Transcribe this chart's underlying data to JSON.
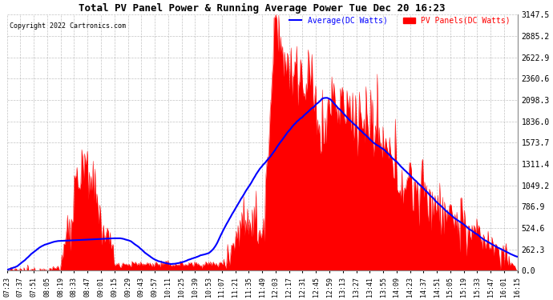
{
  "title": "Total PV Panel Power & Running Average Power Tue Dec 20 16:23",
  "copyright": "Copyright 2022 Cartronics.com",
  "legend_avg": "Average(DC Watts)",
  "legend_pv": "PV Panels(DC Watts)",
  "ylabel_right_values": [
    3147.5,
    2885.2,
    2622.9,
    2360.6,
    2098.3,
    1836.0,
    1573.7,
    1311.4,
    1049.2,
    786.9,
    524.6,
    262.3,
    0.0
  ],
  "ymax": 3147.5,
  "ymin": 0.0,
  "background_color": "#ffffff",
  "grid_color": "#aaaaaa",
  "pv_color": "#ff0000",
  "avg_color": "#0000ff",
  "title_color": "#000000",
  "copyright_color": "#000000",
  "x_tick_labels": [
    "07:23",
    "07:37",
    "07:51",
    "08:05",
    "08:19",
    "08:33",
    "08:47",
    "09:01",
    "09:15",
    "09:29",
    "09:43",
    "09:57",
    "10:11",
    "10:25",
    "10:39",
    "10:53",
    "11:07",
    "11:21",
    "11:35",
    "11:49",
    "12:03",
    "12:17",
    "12:31",
    "12:45",
    "12:59",
    "13:13",
    "13:27",
    "13:41",
    "13:55",
    "14:09",
    "14:23",
    "14:37",
    "14:51",
    "15:05",
    "15:19",
    "15:33",
    "15:47",
    "16:01",
    "16:15"
  ],
  "n_ticks": 39
}
